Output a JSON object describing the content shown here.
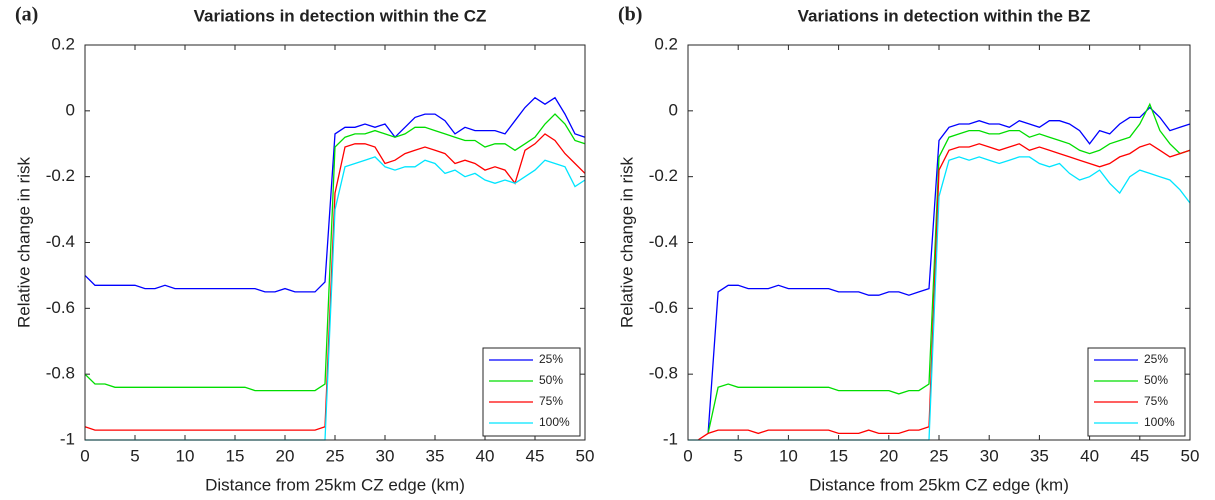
{
  "chart_data": [
    {
      "type": "line",
      "label": "(a)",
      "title": "Variations in detection within the CZ",
      "xlabel": "Distance from 25km CZ edge (km)",
      "ylabel": "Relative change in risk",
      "x": [
        0,
        1,
        2,
        3,
        4,
        5,
        6,
        7,
        8,
        9,
        10,
        11,
        12,
        13,
        14,
        15,
        16,
        17,
        18,
        19,
        20,
        21,
        22,
        23,
        24,
        25,
        26,
        27,
        28,
        29,
        30,
        31,
        32,
        33,
        34,
        35,
        36,
        37,
        38,
        39,
        40,
        41,
        42,
        43,
        44,
        45,
        46,
        47,
        48,
        49,
        50
      ],
      "xlim": [
        0,
        50
      ],
      "ylim": [
        -1,
        0.2
      ],
      "xticks": [
        0,
        5,
        10,
        15,
        20,
        25,
        30,
        35,
        40,
        45,
        50
      ],
      "yticks": [
        -1,
        -0.8,
        -0.6,
        -0.4,
        -0.2,
        0,
        0.2
      ],
      "legend": "lower right",
      "series": [
        {
          "name": "25%",
          "color": "#0000ff",
          "values": [
            -0.5,
            -0.53,
            -0.53,
            -0.53,
            -0.53,
            -0.53,
            -0.54,
            -0.54,
            -0.53,
            -0.54,
            -0.54,
            -0.54,
            -0.54,
            -0.54,
            -0.54,
            -0.54,
            -0.54,
            -0.54,
            -0.55,
            -0.55,
            -0.54,
            -0.55,
            -0.55,
            -0.55,
            -0.52,
            -0.07,
            -0.05,
            -0.05,
            -0.04,
            -0.05,
            -0.04,
            -0.08,
            -0.05,
            -0.02,
            -0.01,
            -0.01,
            -0.03,
            -0.07,
            -0.05,
            -0.06,
            -0.06,
            -0.06,
            -0.07,
            -0.03,
            0.01,
            0.04,
            0.02,
            0.04,
            -0.01,
            -0.07,
            -0.08
          ]
        },
        {
          "name": "50%",
          "color": "#00dd00",
          "values": [
            -0.8,
            -0.83,
            -0.83,
            -0.84,
            -0.84,
            -0.84,
            -0.84,
            -0.84,
            -0.84,
            -0.84,
            -0.84,
            -0.84,
            -0.84,
            -0.84,
            -0.84,
            -0.84,
            -0.84,
            -0.85,
            -0.85,
            -0.85,
            -0.85,
            -0.85,
            -0.85,
            -0.85,
            -0.83,
            -0.11,
            -0.08,
            -0.07,
            -0.07,
            -0.06,
            -0.07,
            -0.08,
            -0.07,
            -0.05,
            -0.05,
            -0.06,
            -0.07,
            -0.08,
            -0.09,
            -0.09,
            -0.11,
            -0.1,
            -0.1,
            -0.12,
            -0.1,
            -0.08,
            -0.04,
            -0.01,
            -0.04,
            -0.09,
            -0.1
          ]
        },
        {
          "name": "75%",
          "color": "#ff0000",
          "values": [
            -0.96,
            -0.97,
            -0.97,
            -0.97,
            -0.97,
            -0.97,
            -0.97,
            -0.97,
            -0.97,
            -0.97,
            -0.97,
            -0.97,
            -0.97,
            -0.97,
            -0.97,
            -0.97,
            -0.97,
            -0.97,
            -0.97,
            -0.97,
            -0.97,
            -0.97,
            -0.97,
            -0.97,
            -0.96,
            -0.25,
            -0.11,
            -0.1,
            -0.1,
            -0.11,
            -0.16,
            -0.15,
            -0.13,
            -0.12,
            -0.11,
            -0.12,
            -0.13,
            -0.16,
            -0.15,
            -0.16,
            -0.18,
            -0.17,
            -0.18,
            -0.22,
            -0.12,
            -0.1,
            -0.07,
            -0.09,
            -0.13,
            -0.16,
            -0.19
          ]
        },
        {
          "name": "100%",
          "color": "#00e5ff",
          "values": [
            -1,
            -1,
            -1,
            -1,
            -1,
            -1,
            -1,
            -1,
            -1,
            -1,
            -1,
            -1,
            -1,
            -1,
            -1,
            -1,
            -1,
            -1,
            -1,
            -1,
            -1,
            -1,
            -1,
            -1,
            -1,
            -0.3,
            -0.17,
            -0.16,
            -0.15,
            -0.14,
            -0.17,
            -0.18,
            -0.17,
            -0.17,
            -0.15,
            -0.16,
            -0.19,
            -0.18,
            -0.2,
            -0.19,
            -0.21,
            -0.22,
            -0.21,
            -0.22,
            -0.2,
            -0.18,
            -0.15,
            -0.16,
            -0.17,
            -0.23,
            -0.21
          ]
        }
      ]
    },
    {
      "type": "line",
      "label": "(b)",
      "title": "Variations in detection within the BZ",
      "xlabel": "Distance from 25km CZ edge (km)",
      "ylabel": "Relative change in risk",
      "x": [
        0,
        1,
        2,
        3,
        4,
        5,
        6,
        7,
        8,
        9,
        10,
        11,
        12,
        13,
        14,
        15,
        16,
        17,
        18,
        19,
        20,
        21,
        22,
        23,
        24,
        25,
        26,
        27,
        28,
        29,
        30,
        31,
        32,
        33,
        34,
        35,
        36,
        37,
        38,
        39,
        40,
        41,
        42,
        43,
        44,
        45,
        46,
        47,
        48,
        49,
        50
      ],
      "xlim": [
        0,
        50
      ],
      "ylim": [
        -1,
        0.2
      ],
      "xticks": [
        0,
        5,
        10,
        15,
        20,
        25,
        30,
        35,
        40,
        45,
        50
      ],
      "yticks": [
        -1,
        -0.8,
        -0.6,
        -0.4,
        -0.2,
        0,
        0.2
      ],
      "legend": "lower right",
      "series": [
        {
          "name": "25%",
          "color": "#0000ff",
          "values": [
            null,
            null,
            -0.98,
            -0.55,
            -0.53,
            -0.53,
            -0.54,
            -0.54,
            -0.54,
            -0.53,
            -0.54,
            -0.54,
            -0.54,
            -0.54,
            -0.54,
            -0.55,
            -0.55,
            -0.55,
            -0.56,
            -0.56,
            -0.55,
            -0.55,
            -0.56,
            -0.55,
            -0.54,
            -0.09,
            -0.05,
            -0.04,
            -0.04,
            -0.03,
            -0.04,
            -0.04,
            -0.05,
            -0.03,
            -0.04,
            -0.05,
            -0.03,
            -0.03,
            -0.04,
            -0.06,
            -0.1,
            -0.06,
            -0.07,
            -0.04,
            -0.02,
            -0.02,
            0.01,
            -0.02,
            -0.06,
            -0.05,
            -0.04
          ]
        },
        {
          "name": "50%",
          "color": "#00dd00",
          "values": [
            null,
            null,
            -0.98,
            -0.84,
            -0.83,
            -0.84,
            -0.84,
            -0.84,
            -0.84,
            -0.84,
            -0.84,
            -0.84,
            -0.84,
            -0.84,
            -0.84,
            -0.85,
            -0.85,
            -0.85,
            -0.85,
            -0.85,
            -0.85,
            -0.86,
            -0.85,
            -0.85,
            -0.83,
            -0.14,
            -0.08,
            -0.07,
            -0.06,
            -0.06,
            -0.07,
            -0.07,
            -0.06,
            -0.06,
            -0.08,
            -0.07,
            -0.08,
            -0.09,
            -0.1,
            -0.12,
            -0.13,
            -0.12,
            -0.1,
            -0.09,
            -0.08,
            -0.04,
            0.02,
            -0.06,
            -0.1,
            -0.13,
            -0.12
          ]
        },
        {
          "name": "75%",
          "color": "#ff0000",
          "values": [
            null,
            -1,
            -0.98,
            -0.97,
            -0.97,
            -0.97,
            -0.97,
            -0.98,
            -0.97,
            -0.97,
            -0.97,
            -0.97,
            -0.97,
            -0.97,
            -0.97,
            -0.98,
            -0.98,
            -0.98,
            -0.97,
            -0.98,
            -0.98,
            -0.98,
            -0.97,
            -0.97,
            -0.96,
            -0.18,
            -0.12,
            -0.11,
            -0.11,
            -0.1,
            -0.11,
            -0.12,
            -0.11,
            -0.1,
            -0.12,
            -0.11,
            -0.12,
            -0.13,
            -0.14,
            -0.15,
            -0.16,
            -0.17,
            -0.16,
            -0.14,
            -0.13,
            -0.11,
            -0.1,
            -0.12,
            -0.14,
            -0.13,
            -0.12
          ]
        },
        {
          "name": "100%",
          "color": "#00e5ff",
          "values": [
            -1,
            -1,
            -1,
            -1,
            -1,
            -1,
            -1,
            -1,
            -1,
            -1,
            -1,
            -1,
            -1,
            -1,
            -1,
            -1,
            -1,
            -1,
            -1,
            -1,
            -1,
            -1,
            -1,
            -1,
            -1,
            -0.26,
            -0.15,
            -0.14,
            -0.15,
            -0.14,
            -0.15,
            -0.16,
            -0.15,
            -0.14,
            -0.14,
            -0.16,
            -0.17,
            -0.16,
            -0.19,
            -0.21,
            -0.2,
            -0.18,
            -0.22,
            -0.25,
            -0.2,
            -0.18,
            -0.19,
            -0.2,
            -0.21,
            -0.24,
            -0.28
          ]
        }
      ]
    }
  ]
}
